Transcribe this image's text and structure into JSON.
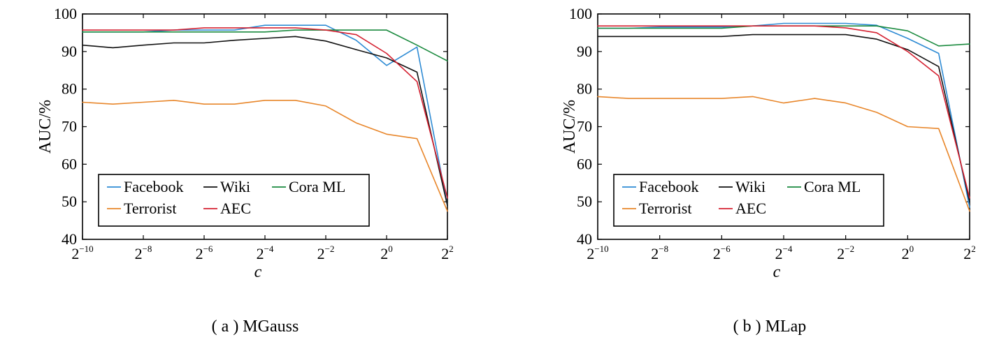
{
  "chart_data": [
    {
      "type": "line",
      "panel": "a",
      "caption": "( a ) MGauss",
      "xlabel": "c",
      "ylabel": "AUC/%",
      "xscale": "log2",
      "x_exponents": [
        -10,
        -9,
        -8,
        -7,
        -6,
        -5,
        -4,
        -3,
        -2,
        -1,
        0,
        1,
        2
      ],
      "xticks": [
        {
          "base": "2",
          "exp": "−10",
          "value": -10
        },
        {
          "base": "2",
          "exp": "−8",
          "value": -8
        },
        {
          "base": "2",
          "exp": "−6",
          "value": -6
        },
        {
          "base": "2",
          "exp": "−4",
          "value": -4
        },
        {
          "base": "2",
          "exp": "−2",
          "value": -2
        },
        {
          "base": "2",
          "exp": "0",
          "value": 0
        },
        {
          "base": "2",
          "exp": "2",
          "value": 2
        }
      ],
      "yticks": [
        "40",
        "50",
        "60",
        "70",
        "80",
        "90",
        "100"
      ],
      "ylim": [
        40,
        100
      ],
      "xlim": [
        -10,
        2
      ],
      "legend_position": "bottom-left",
      "series": [
        {
          "name": "Facebook",
          "color": "#2e8bd4",
          "values": [
            95.2,
            95.2,
            95.2,
            95.7,
            95.7,
            95.7,
            97.0,
            97.0,
            97.0,
            93.0,
            86.3,
            91.2,
            49.0
          ]
        },
        {
          "name": "Wiki",
          "color": "#111111",
          "values": [
            91.7,
            91.0,
            91.7,
            92.3,
            92.3,
            93.0,
            93.5,
            94.0,
            92.8,
            90.5,
            88.3,
            84.5,
            49.0
          ]
        },
        {
          "name": "Cora ML",
          "color": "#1a8a3e",
          "values": [
            95.2,
            95.2,
            95.2,
            95.2,
            95.2,
            95.2,
            95.2,
            95.7,
            95.7,
            95.7,
            95.7,
            91.7,
            87.5
          ]
        },
        {
          "name": "Terrorist",
          "color": "#e8862a",
          "values": [
            76.5,
            76.0,
            76.5,
            77.0,
            76.0,
            76.0,
            77.0,
            77.0,
            75.5,
            71.0,
            68.0,
            66.8,
            47.5
          ]
        },
        {
          "name": "AEC",
          "color": "#d42030",
          "values": [
            95.7,
            95.7,
            95.7,
            95.7,
            96.3,
            96.3,
            96.3,
            96.3,
            95.7,
            94.5,
            89.5,
            82.0,
            51.0
          ]
        }
      ]
    },
    {
      "type": "line",
      "panel": "b",
      "caption": "( b ) MLap",
      "xlabel": "c",
      "ylabel": "AUC/%",
      "xscale": "log2",
      "x_exponents": [
        -10,
        -9,
        -8,
        -7,
        -6,
        -5,
        -4,
        -3,
        -2,
        -1,
        0,
        1,
        2
      ],
      "xticks": [
        {
          "base": "2",
          "exp": "−10",
          "value": -10
        },
        {
          "base": "2",
          "exp": "−8",
          "value": -8
        },
        {
          "base": "2",
          "exp": "−6",
          "value": -6
        },
        {
          "base": "2",
          "exp": "−4",
          "value": -4
        },
        {
          "base": "2",
          "exp": "−2",
          "value": -2
        },
        {
          "base": "2",
          "exp": "0",
          "value": 0
        },
        {
          "base": "2",
          "exp": "2",
          "value": 2
        }
      ],
      "yticks": [
        "40",
        "50",
        "60",
        "70",
        "80",
        "90",
        "100"
      ],
      "ylim": [
        40,
        100
      ],
      "xlim": [
        -10,
        2
      ],
      "legend_position": "bottom-left",
      "series": [
        {
          "name": "Facebook",
          "color": "#2e8bd4",
          "values": [
            96.2,
            96.2,
            96.5,
            96.5,
            96.5,
            96.8,
            97.5,
            97.5,
            97.5,
            97.0,
            93.5,
            89.5,
            48.5
          ]
        },
        {
          "name": "Wiki",
          "color": "#111111",
          "values": [
            94.0,
            94.0,
            94.0,
            94.0,
            94.0,
            94.5,
            94.5,
            94.5,
            94.5,
            93.3,
            90.5,
            86.0,
            50.0
          ]
        },
        {
          "name": "Cora ML",
          "color": "#1a8a3e",
          "values": [
            96.2,
            96.2,
            96.2,
            96.2,
            96.2,
            96.8,
            96.8,
            96.8,
            96.8,
            96.8,
            95.5,
            91.5,
            92.0
          ]
        },
        {
          "name": "Terrorist",
          "color": "#e8862a",
          "values": [
            78.0,
            77.5,
            77.5,
            77.5,
            77.5,
            78.0,
            76.3,
            77.5,
            76.3,
            73.8,
            70.0,
            69.5,
            47.5
          ]
        },
        {
          "name": "AEC",
          "color": "#d42030",
          "values": [
            96.8,
            96.8,
            96.8,
            96.8,
            96.8,
            96.8,
            96.8,
            96.8,
            96.3,
            95.0,
            90.0,
            83.5,
            51.0
          ]
        }
      ]
    }
  ]
}
